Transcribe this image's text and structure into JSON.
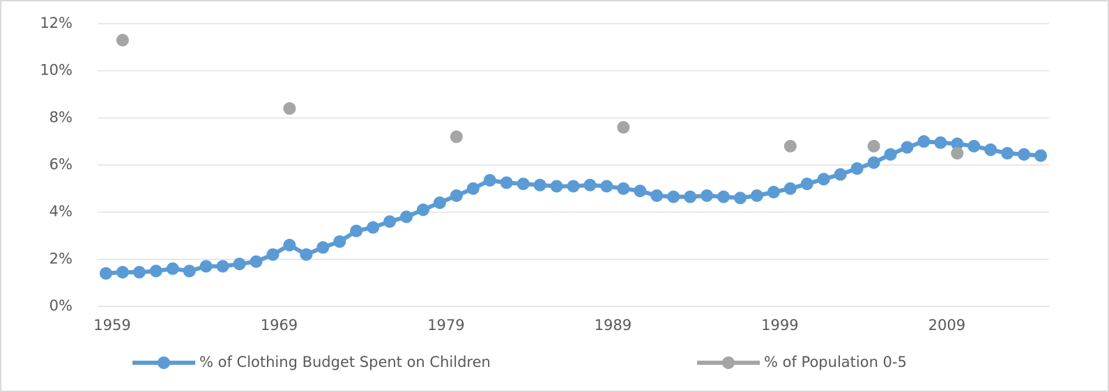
{
  "chart_data": {
    "type": "line",
    "series": [
      {
        "name": "% of Clothing Budget Spent on Children",
        "color": "#5b9bd5",
        "type": "line",
        "x": [
          1959,
          1960,
          1961,
          1962,
          1963,
          1964,
          1965,
          1966,
          1967,
          1968,
          1969,
          1970,
          1971,
          1972,
          1973,
          1974,
          1975,
          1976,
          1977,
          1978,
          1979,
          1980,
          1981,
          1982,
          1983,
          1984,
          1985,
          1986,
          1987,
          1988,
          1989,
          1990,
          1991,
          1992,
          1993,
          1994,
          1995,
          1996,
          1997,
          1998,
          1999,
          2000,
          2001,
          2002,
          2003,
          2004,
          2005,
          2006,
          2007,
          2008,
          2009,
          2010,
          2011,
          2012,
          2013,
          2014,
          2015
        ],
        "values": [
          1.4,
          1.45,
          1.45,
          1.5,
          1.6,
          1.5,
          1.7,
          1.7,
          1.8,
          1.9,
          2.2,
          2.6,
          2.2,
          2.5,
          2.75,
          3.2,
          3.35,
          3.6,
          3.8,
          4.1,
          4.4,
          4.7,
          5.0,
          5.35,
          5.25,
          5.2,
          5.15,
          5.1,
          5.1,
          5.15,
          5.1,
          5.0,
          4.9,
          4.7,
          4.65,
          4.65,
          4.7,
          4.65,
          4.6,
          4.7,
          4.85,
          5.0,
          5.2,
          5.4,
          5.6,
          5.85,
          6.1,
          6.45,
          6.75,
          7.0,
          6.95,
          6.9,
          6.8,
          6.65,
          6.5,
          6.45,
          6.4
        ]
      },
      {
        "name": "% of Population 0-5",
        "color": "#a5a5a5",
        "type": "scatter",
        "x": [
          1960,
          1970,
          1980,
          1990,
          2000,
          2005,
          2010
        ],
        "values": [
          11.3,
          8.4,
          7.2,
          7.6,
          6.8,
          6.8,
          6.5
        ]
      }
    ],
    "xlim": [
      1958.5,
      2015.5
    ],
    "xticks": [
      1959,
      1969,
      1979,
      1989,
      1999,
      2009
    ],
    "ylim": [
      0,
      12
    ],
    "yticks": [
      {
        "value": 0,
        "label": "0%"
      },
      {
        "value": 2,
        "label": "2%"
      },
      {
        "value": 4,
        "label": "4%"
      },
      {
        "value": 6,
        "label": "6%"
      },
      {
        "value": 8,
        "label": "8%"
      },
      {
        "value": 10,
        "label": "10%"
      },
      {
        "value": 12,
        "label": "12%"
      }
    ],
    "grid": true,
    "legend": "bottom"
  }
}
